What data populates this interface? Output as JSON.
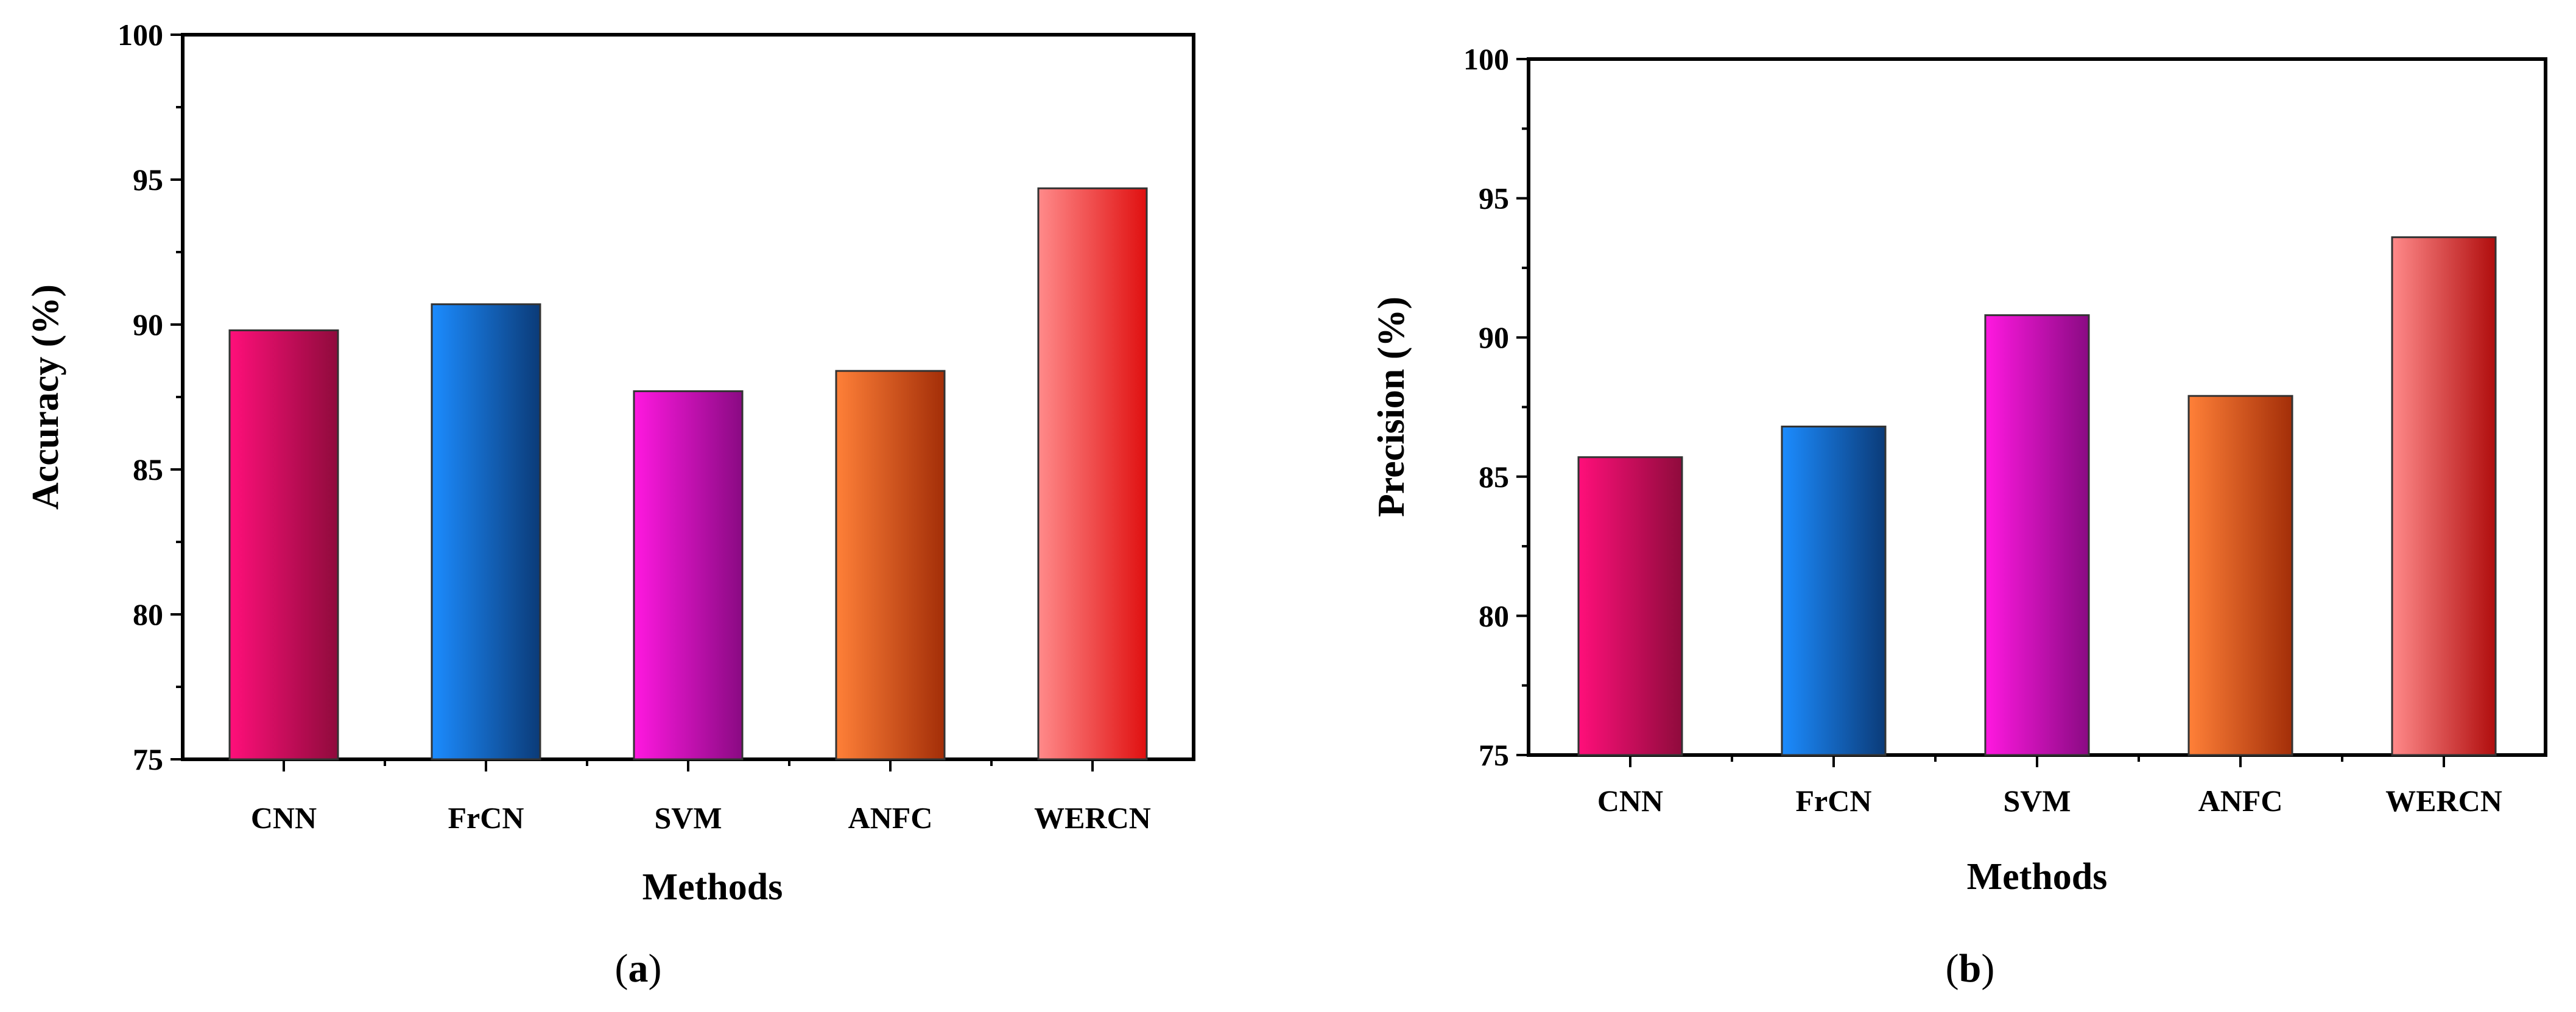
{
  "chart_data": [
    {
      "type": "bar",
      "panel_label": "a",
      "xlabel": "Methods",
      "ylabel": "Accuracy (%)",
      "ylim": [
        75,
        100
      ],
      "yticks": [
        75,
        80,
        85,
        90,
        95,
        100
      ],
      "categories": [
        "CNN",
        "FrCN",
        "SVM",
        "ANFC",
        "WERCN"
      ],
      "values": [
        89.8,
        90.7,
        87.7,
        88.4,
        94.7
      ],
      "colors": [
        [
          "#ff0f7a",
          "#8f0b3c"
        ],
        [
          "#1c8cff",
          "#0b3b78"
        ],
        [
          "#ff18e0",
          "#8a0a83"
        ],
        [
          "#ff8038",
          "#a32e08"
        ],
        [
          "#ff8a8a",
          "#e01010"
        ]
      ]
    },
    {
      "type": "bar",
      "panel_label": "b",
      "xlabel": "Methods",
      "ylabel": "Precision (%)",
      "ylim": [
        75,
        100
      ],
      "yticks": [
        75,
        80,
        85,
        90,
        95,
        100
      ],
      "categories": [
        "CNN",
        "FrCN",
        "SVM",
        "ANFC",
        "WERCN"
      ],
      "values": [
        85.7,
        86.8,
        90.8,
        87.9,
        93.6
      ],
      "colors": [
        [
          "#ff0f7a",
          "#8f0b3c"
        ],
        [
          "#1c8cff",
          "#0b3b78"
        ],
        [
          "#ff18e0",
          "#8a0a83"
        ],
        [
          "#ff8038",
          "#a32e08"
        ],
        [
          "#ff8a8a",
          "#b00d0d"
        ]
      ]
    }
  ]
}
